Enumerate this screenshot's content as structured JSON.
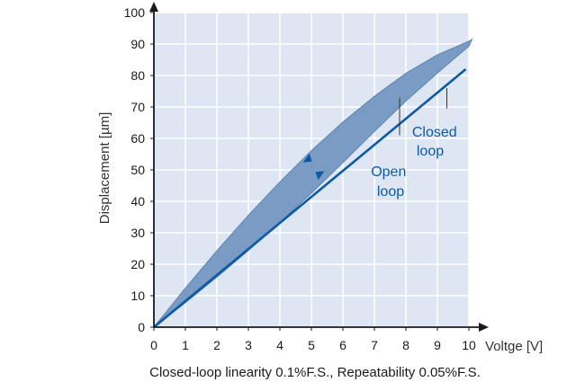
{
  "chart_data": {
    "type": "line",
    "title": "",
    "xlabel": "Voltge [V]",
    "ylabel": "Displacement [µm]",
    "caption": "Closed-loop linearity 0.1%F.S., Repeatability 0.05%F.S.",
    "xlim": [
      0,
      10
    ],
    "ylim": [
      0,
      100
    ],
    "xticks": [
      0,
      1,
      2,
      3,
      4,
      5,
      6,
      7,
      8,
      9,
      10
    ],
    "yticks": [
      0,
      10,
      20,
      30,
      40,
      50,
      60,
      70,
      80,
      90,
      100
    ],
    "grid": true,
    "series": [
      {
        "name": "Open loop",
        "kind": "hysteresis-band",
        "upper": {
          "x": [
            0,
            1,
            2,
            3,
            4,
            5,
            6,
            7,
            8,
            9,
            10,
            10.1
          ],
          "y": [
            0,
            12.4,
            24.3,
            35.6,
            46.2,
            56.1,
            65.2,
            73.4,
            80.7,
            86.6,
            90.9,
            91.5
          ]
        },
        "lower": {
          "x": [
            0,
            1,
            2,
            3,
            4,
            5,
            6,
            7,
            8,
            9,
            10,
            10.1
          ],
          "y": [
            0,
            7.8,
            15.9,
            24.4,
            33.3,
            42.6,
            52.3,
            62.2,
            71.9,
            80.8,
            89.3,
            91.5
          ]
        }
      },
      {
        "name": "Closed loop",
        "kind": "line",
        "x": [
          0,
          9.9
        ],
        "y": [
          0,
          82
        ]
      }
    ],
    "annotations": [
      {
        "text": [
          "Open",
          "loop"
        ],
        "target_series": "Open loop",
        "pointer_x": 7.8,
        "pointer_y": [
          73,
          61
        ]
      },
      {
        "text": [
          "Closed",
          "loop"
        ],
        "target_series": "Closed loop",
        "pointer_x": 9.3,
        "pointer_y": [
          76,
          69.5
        ]
      }
    ],
    "arrows": [
      {
        "direction": "up",
        "x": 4.85,
        "y": 53.5
      },
      {
        "direction": "down",
        "x": 5.3,
        "y": 48.5
      }
    ],
    "colors": {
      "plot_background": "#dde6f2",
      "grid": "#ffffff",
      "band_fill": "#7a9bc3",
      "band_edge": "#5f85b3",
      "line": "#0b5aa5",
      "annotation_text": "#0b5aa5",
      "axis": "#1a1a1a"
    }
  }
}
